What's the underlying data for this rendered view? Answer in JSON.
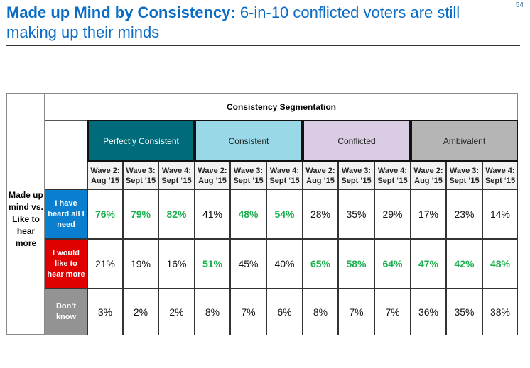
{
  "page_number": "54",
  "title": {
    "bold": "Made up Mind by Consistency:",
    "rest": " 6-in-10 conflicted voters are still making up their minds"
  },
  "table": {
    "super_header": "Consistency Segmentation",
    "side_label": "Made up mind vs. Like to hear more",
    "segments": [
      {
        "label": "Perfectly Consistent",
        "bg": "#006b7a",
        "fg": "#ffffff"
      },
      {
        "label": "Consistent",
        "bg": "#99d8e6",
        "fg": "#222222"
      },
      {
        "label": "Conflicted",
        "bg": "#d9cce3",
        "fg": "#222222"
      },
      {
        "label": "Ambivalent",
        "bg": "#b5b5b5",
        "fg": "#222222"
      }
    ],
    "waves": [
      {
        "l1": "Wave 2:",
        "l2": "Aug ’15"
      },
      {
        "l1": "Wave 3:",
        "l2": "Sept ’15"
      },
      {
        "l1": "Wave 4:",
        "l2": "Sept ‘15"
      }
    ],
    "highlight_color": "#1db04e",
    "rows": [
      {
        "label": "I have heard all I need",
        "bg": "#0a7fd0",
        "values": [
          "76%",
          "79%",
          "82%",
          "41%",
          "48%",
          "54%",
          "28%",
          "35%",
          "29%",
          "17%",
          "23%",
          "14%"
        ],
        "highlight": [
          true,
          true,
          true,
          false,
          true,
          true,
          false,
          false,
          false,
          false,
          false,
          false
        ]
      },
      {
        "label": "I would like to hear more",
        "bg": "#e00000",
        "values": [
          "21%",
          "19%",
          "16%",
          "51%",
          "45%",
          "40%",
          "65%",
          "58%",
          "64%",
          "47%",
          "42%",
          "48%"
        ],
        "highlight": [
          false,
          false,
          false,
          true,
          false,
          false,
          true,
          true,
          true,
          true,
          true,
          true
        ]
      },
      {
        "label": "Don’t know",
        "bg": "#939393",
        "values": [
          "3%",
          "2%",
          "2%",
          "8%",
          "7%",
          "6%",
          "8%",
          "7%",
          "7%",
          "36%",
          "35%",
          "38%"
        ],
        "highlight": [
          false,
          false,
          false,
          false,
          false,
          false,
          false,
          false,
          false,
          false,
          false,
          false
        ]
      }
    ]
  }
}
